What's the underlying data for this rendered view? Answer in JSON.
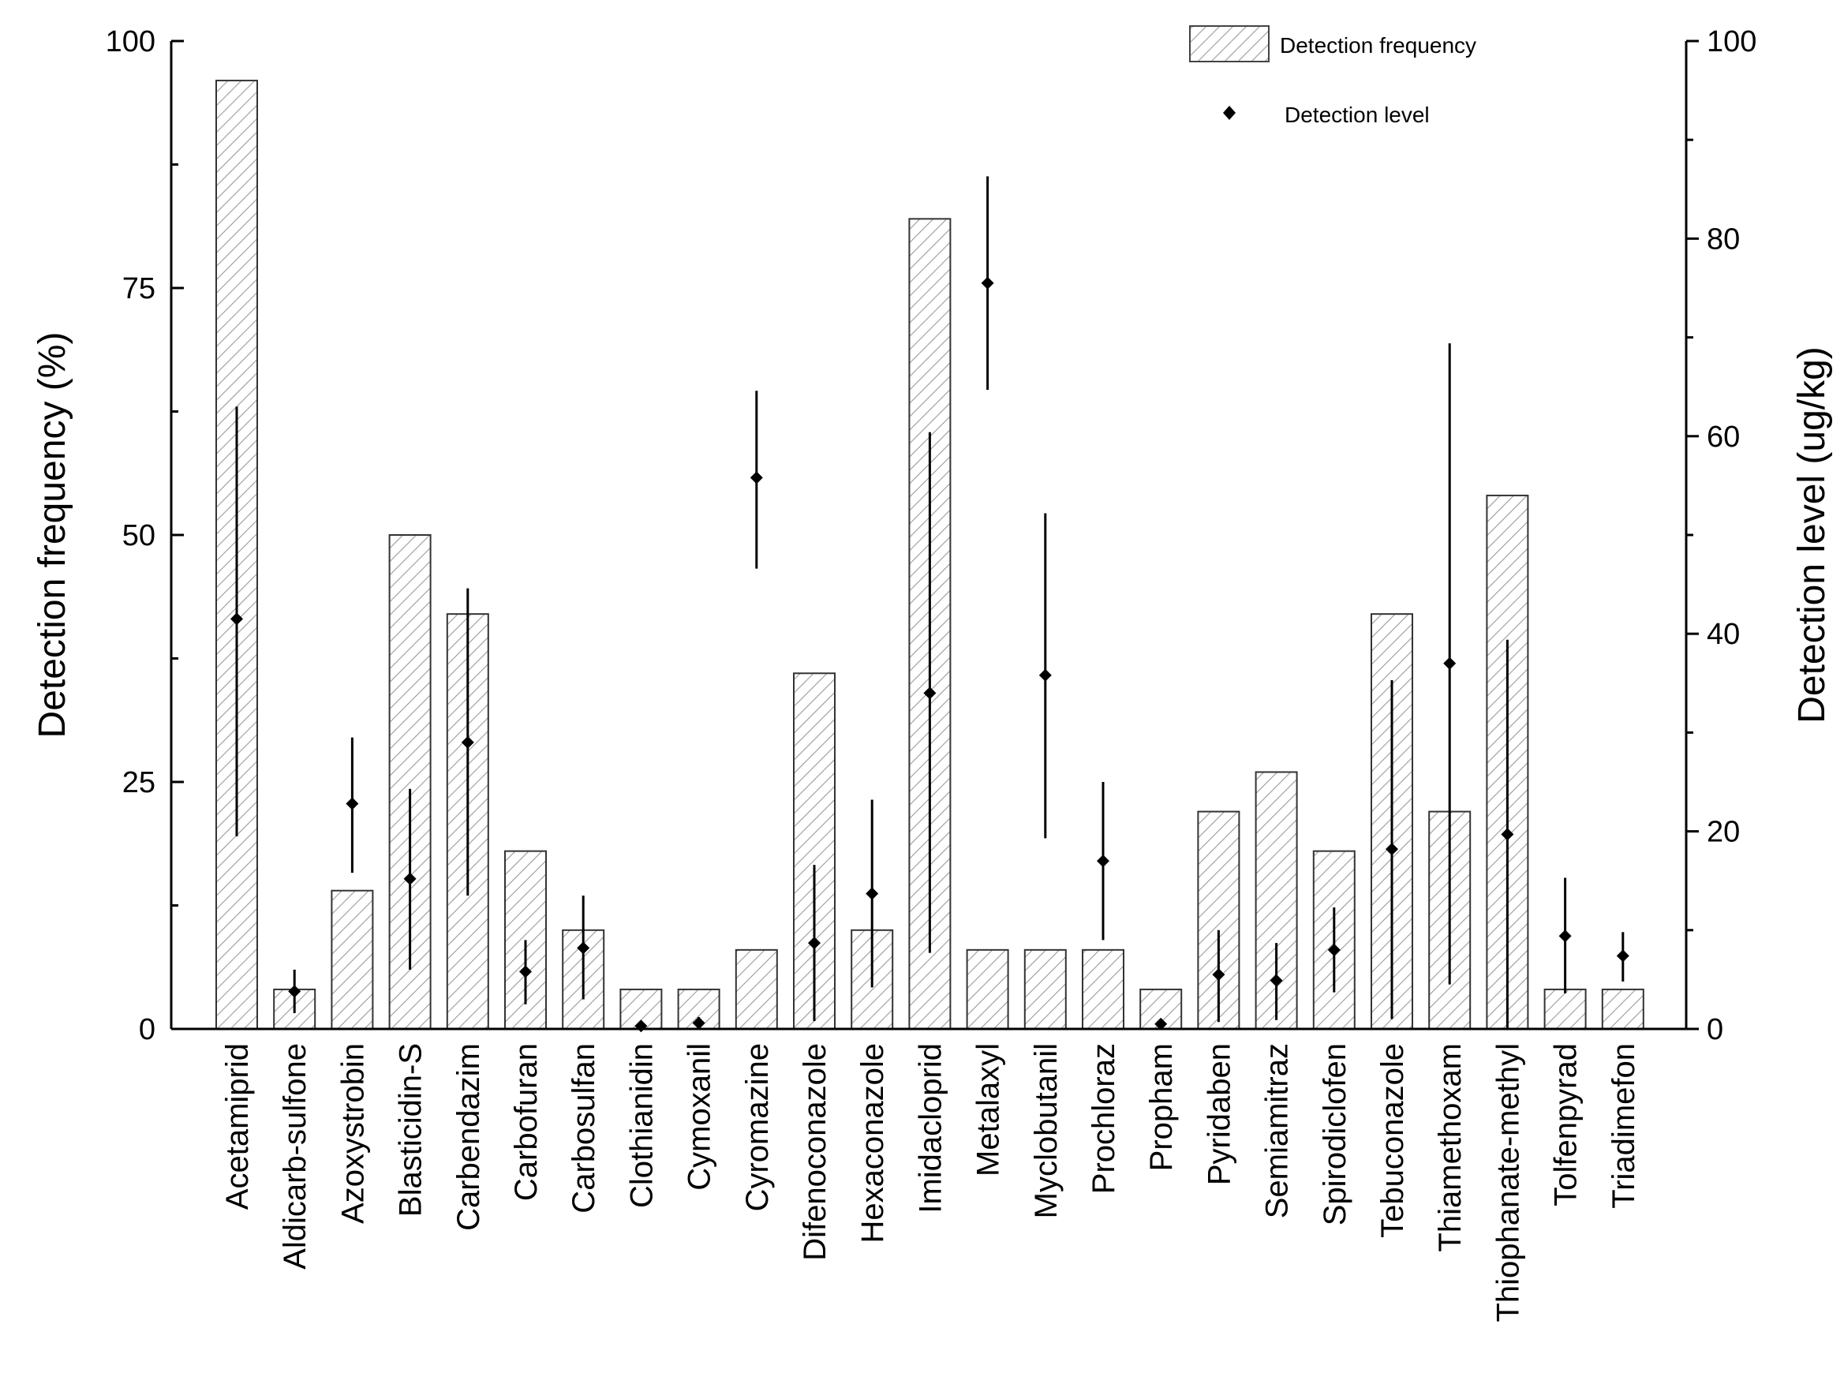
{
  "chart_data": {
    "type": "bar",
    "categories": [
      "Acetamiprid",
      "Aldicarb-sulfone",
      "Azoxystrobin",
      "Blasticidin-S",
      "Carbendazim",
      "Carbofuran",
      "Carbosulfan",
      "Clothianidin",
      "Cymoxanil",
      "Cyromazine",
      "Difenoconazole",
      "Hexaconazole",
      "Imidacloprid",
      "Metalaxyl",
      "Myclobutanil",
      "Prochloraz",
      "Propham",
      "Pyridaben",
      "Semiamitraz",
      "Spirodiclofen",
      "Tebuconazole",
      "Thiamethoxam",
      "Thiophanate-methyl",
      "Tolfenpyrad",
      "Triadimefon"
    ],
    "series": [
      {
        "name": "Detection frequency",
        "axis": "left",
        "type": "bar",
        "values": [
          96,
          4,
          14,
          50,
          42,
          18,
          10,
          4,
          4,
          8,
          36,
          10,
          82,
          8,
          8,
          8,
          4,
          22,
          26,
          18,
          42,
          22,
          54,
          4,
          4
        ]
      },
      {
        "name": "Detection level",
        "axis": "right",
        "type": "scatter",
        "values": [
          41.5,
          3.8,
          22.8,
          15.2,
          29.0,
          5.8,
          8.2,
          0.3,
          0.6,
          55.8,
          8.7,
          13.7,
          34.0,
          75.5,
          35.8,
          17.0,
          0.5,
          5.5,
          4.9,
          8.0,
          18.2,
          37.0,
          19.7,
          9.4,
          7.4
        ],
        "error_low": [
          19.5,
          1.6,
          15.8,
          6.0,
          13.5,
          2.5,
          3.0,
          0.0,
          0.0,
          46.6,
          0.8,
          4.2,
          7.7,
          64.7,
          19.3,
          9.0,
          0.0,
          0.7,
          0.9,
          3.7,
          1.0,
          4.5,
          0.0,
          3.6,
          4.8
        ],
        "error_high": [
          63.0,
          6.0,
          29.5,
          24.3,
          44.6,
          9.0,
          13.5,
          0.6,
          1.2,
          64.6,
          16.6,
          23.2,
          60.4,
          86.3,
          52.2,
          25.0,
          1.0,
          10.0,
          8.7,
          12.3,
          35.3,
          69.4,
          39.4,
          15.3,
          9.8
        ]
      }
    ],
    "ylabel": "Detection frequency (%)",
    "y2label": "Detection level (ug/kg)",
    "xlabel": "",
    "ylim": [
      0,
      100
    ],
    "y2lim": [
      0,
      100
    ],
    "yticks": [
      "0",
      "25",
      "50",
      "75",
      "100"
    ],
    "y2ticks": [
      "0",
      "20",
      "40",
      "60",
      "80",
      "100"
    ],
    "legend": {
      "position": "top-right",
      "bar_label": "Detection frequency",
      "point_label": "Detection level"
    },
    "grid": false
  }
}
